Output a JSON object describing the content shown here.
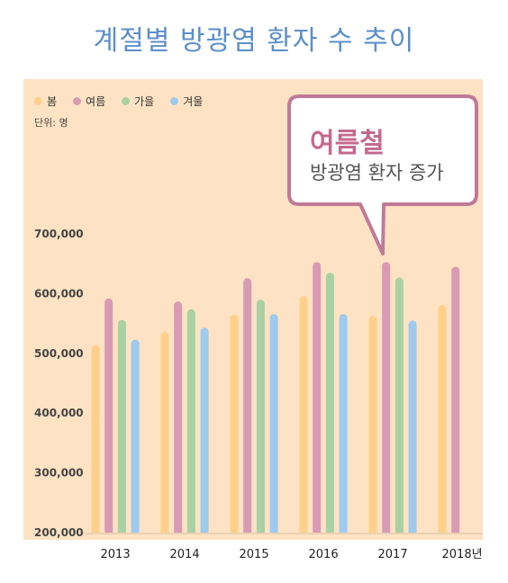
{
  "title": "계절별 방광염 환자 수 추이",
  "unit_label": "단위: 명",
  "callout": {
    "title": "여름철",
    "subtitle": "방광염 환자 증가"
  },
  "chart_data": {
    "type": "bar",
    "categories": [
      "2013",
      "2014",
      "2015",
      "2016",
      "2017",
      "2018년"
    ],
    "ylim": [
      200000,
      700000
    ],
    "y_ticks": [
      "200,000",
      "300,000",
      "400,000",
      "500,000",
      "600,000",
      "700,000"
    ],
    "series": [
      {
        "name": "봄",
        "color": "#ffcf8c",
        "values": [
          514000,
          536000,
          565000,
          596000,
          563000,
          581000
        ]
      },
      {
        "name": "여름",
        "color": "#d99ab4",
        "values": [
          592000,
          587000,
          626000,
          653000,
          653000,
          645000
        ]
      },
      {
        "name": "가을",
        "color": "#a9d1a3",
        "values": [
          556000,
          574000,
          590000,
          635000,
          627000,
          null
        ]
      },
      {
        "name": "겨울",
        "color": "#9dcaef",
        "values": [
          523000,
          543000,
          566000,
          566000,
          555000,
          null
        ]
      }
    ],
    "legend_position": "top-left",
    "grid": false
  }
}
